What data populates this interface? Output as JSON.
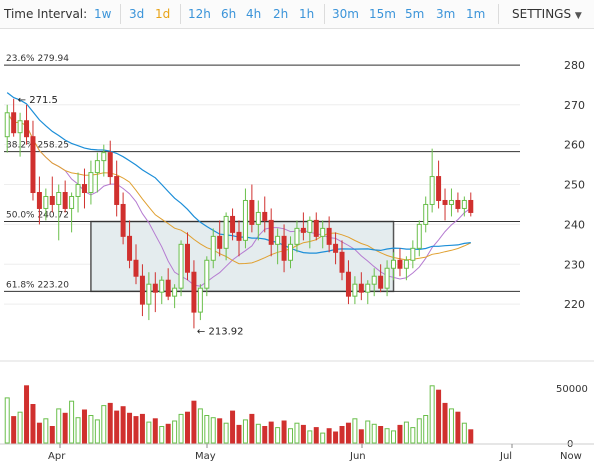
{
  "toolbar": {
    "label": "Time Interval:",
    "options": [
      "1w",
      "3d",
      "1d",
      "12h",
      "6h",
      "4h",
      "2h",
      "1h",
      "30m",
      "15m",
      "5m",
      "3m",
      "1m"
    ],
    "active": "1d",
    "settings_label": "SETTINGS",
    "accent_color": "#3b94d9",
    "active_color": "#e8a317"
  },
  "chart_data": {
    "type": "candlestick",
    "ylim": [
      210,
      285
    ],
    "y_ticks": [
      220,
      230,
      240,
      250,
      260,
      270,
      280
    ],
    "x_ticks": [
      "Apr",
      "May",
      "Jun",
      "Jul",
      "Now"
    ],
    "fib_levels": [
      {
        "label": "23.6% 279.94",
        "value": 279.94
      },
      {
        "label": "38.2% 258.25",
        "value": 258.25
      },
      {
        "label": "50.0% 240.72",
        "value": 240.72
      },
      {
        "label": "61.8% 223.20",
        "value": 223.2
      }
    ],
    "annotations": [
      {
        "label": "← 271.5",
        "value": 271.5
      },
      {
        "label": "← 213.92",
        "value": 213.92
      }
    ],
    "consolidation_range": [
      223.2,
      240.72
    ],
    "candles": [
      {
        "o": 262,
        "h": 270,
        "l": 258,
        "c": 268
      },
      {
        "o": 268,
        "h": 271.5,
        "l": 262,
        "c": 263
      },
      {
        "o": 263,
        "h": 268,
        "l": 257,
        "c": 266
      },
      {
        "o": 266,
        "h": 270,
        "l": 260,
        "c": 262
      },
      {
        "o": 262,
        "h": 266,
        "l": 246,
        "c": 248
      },
      {
        "o": 248,
        "h": 252,
        "l": 240,
        "c": 244
      },
      {
        "o": 244,
        "h": 249,
        "l": 241,
        "c": 247
      },
      {
        "o": 247,
        "h": 252,
        "l": 243,
        "c": 245
      },
      {
        "o": 245,
        "h": 250,
        "l": 236,
        "c": 248
      },
      {
        "o": 248,
        "h": 251,
        "l": 243,
        "c": 244
      },
      {
        "o": 244,
        "h": 248,
        "l": 238,
        "c": 247
      },
      {
        "o": 247,
        "h": 253,
        "l": 243,
        "c": 250
      },
      {
        "o": 250,
        "h": 254,
        "l": 244,
        "c": 248
      },
      {
        "o": 248,
        "h": 256,
        "l": 245,
        "c": 253
      },
      {
        "o": 253,
        "h": 258,
        "l": 248,
        "c": 256
      },
      {
        "o": 256,
        "h": 260,
        "l": 252,
        "c": 258
      },
      {
        "o": 258,
        "h": 261,
        "l": 250,
        "c": 252
      },
      {
        "o": 252,
        "h": 256,
        "l": 242,
        "c": 245
      },
      {
        "o": 245,
        "h": 248,
        "l": 235,
        "c": 237
      },
      {
        "o": 237,
        "h": 241,
        "l": 229,
        "c": 231
      },
      {
        "o": 231,
        "h": 235,
        "l": 225,
        "c": 227
      },
      {
        "o": 227,
        "h": 230,
        "l": 217,
        "c": 220
      },
      {
        "o": 220,
        "h": 228,
        "l": 216,
        "c": 225
      },
      {
        "o": 225,
        "h": 228,
        "l": 218,
        "c": 223
      },
      {
        "o": 223,
        "h": 227,
        "l": 220,
        "c": 226
      },
      {
        "o": 226,
        "h": 229,
        "l": 221,
        "c": 222
      },
      {
        "o": 222,
        "h": 225,
        "l": 219,
        "c": 224
      },
      {
        "o": 224,
        "h": 236,
        "l": 222,
        "c": 235
      },
      {
        "o": 235,
        "h": 238,
        "l": 226,
        "c": 228
      },
      {
        "o": 228,
        "h": 231,
        "l": 213.92,
        "c": 218
      },
      {
        "o": 218,
        "h": 225,
        "l": 216,
        "c": 224
      },
      {
        "o": 224,
        "h": 232,
        "l": 222,
        "c": 231
      },
      {
        "o": 231,
        "h": 239,
        "l": 229,
        "c": 237
      },
      {
        "o": 237,
        "h": 241,
        "l": 232,
        "c": 234
      },
      {
        "o": 234,
        "h": 243,
        "l": 231,
        "c": 242
      },
      {
        "o": 242,
        "h": 244,
        "l": 236,
        "c": 238
      },
      {
        "o": 238,
        "h": 241,
        "l": 232,
        "c": 236
      },
      {
        "o": 236,
        "h": 249,
        "l": 234,
        "c": 246
      },
      {
        "o": 246,
        "h": 250,
        "l": 238,
        "c": 240
      },
      {
        "o": 240,
        "h": 246,
        "l": 236,
        "c": 243
      },
      {
        "o": 243,
        "h": 247,
        "l": 238,
        "c": 241
      },
      {
        "o": 241,
        "h": 244,
        "l": 232,
        "c": 235
      },
      {
        "o": 235,
        "h": 239,
        "l": 230,
        "c": 237
      },
      {
        "o": 237,
        "h": 240,
        "l": 228,
        "c": 231
      },
      {
        "o": 231,
        "h": 237,
        "l": 229,
        "c": 235
      },
      {
        "o": 235,
        "h": 241,
        "l": 233,
        "c": 239
      },
      {
        "o": 239,
        "h": 243,
        "l": 236,
        "c": 238
      },
      {
        "o": 238,
        "h": 242,
        "l": 234,
        "c": 241
      },
      {
        "o": 241,
        "h": 243,
        "l": 236,
        "c": 237
      },
      {
        "o": 237,
        "h": 241,
        "l": 234,
        "c": 239
      },
      {
        "o": 239,
        "h": 242,
        "l": 233,
        "c": 235
      },
      {
        "o": 235,
        "h": 238,
        "l": 230,
        "c": 233
      },
      {
        "o": 233,
        "h": 236,
        "l": 226,
        "c": 228
      },
      {
        "o": 228,
        "h": 231,
        "l": 220,
        "c": 222
      },
      {
        "o": 222,
        "h": 227,
        "l": 220,
        "c": 225
      },
      {
        "o": 225,
        "h": 228,
        "l": 221,
        "c": 223
      },
      {
        "o": 223,
        "h": 226,
        "l": 220,
        "c": 225
      },
      {
        "o": 225,
        "h": 229,
        "l": 222,
        "c": 227
      },
      {
        "o": 227,
        "h": 230,
        "l": 223,
        "c": 224
      },
      {
        "o": 224,
        "h": 231,
        "l": 222,
        "c": 229
      },
      {
        "o": 229,
        "h": 233,
        "l": 226,
        "c": 231
      },
      {
        "o": 231,
        "h": 234,
        "l": 227,
        "c": 229
      },
      {
        "o": 229,
        "h": 232,
        "l": 226,
        "c": 231
      },
      {
        "o": 231,
        "h": 236,
        "l": 229,
        "c": 234
      },
      {
        "o": 234,
        "h": 241,
        "l": 232,
        "c": 240
      },
      {
        "o": 240,
        "h": 247,
        "l": 238,
        "c": 245
      },
      {
        "o": 245,
        "h": 259,
        "l": 243,
        "c": 252
      },
      {
        "o": 252,
        "h": 256,
        "l": 244,
        "c": 246
      },
      {
        "o": 246,
        "h": 249,
        "l": 241,
        "c": 245
      },
      {
        "o": 245,
        "h": 249,
        "l": 242,
        "c": 246
      },
      {
        "o": 246,
        "h": 248,
        "l": 243,
        "c": 244
      },
      {
        "o": 244,
        "h": 247,
        "l": 242,
        "c": 246
      },
      {
        "o": 246,
        "h": 248,
        "l": 242,
        "c": 243
      }
    ],
    "volume": [
      41000,
      24000,
      28000,
      52000,
      35000,
      18000,
      22000,
      15000,
      31000,
      27000,
      38000,
      23000,
      30000,
      25000,
      21000,
      34000,
      36000,
      29000,
      33000,
      27000,
      24000,
      26000,
      19000,
      22000,
      15000,
      17000,
      20000,
      26000,
      28000,
      38000,
      31000,
      25000,
      23000,
      22000,
      18000,
      29000,
      16000,
      21000,
      26000,
      17000,
      15000,
      19000,
      14000,
      20000,
      13000,
      18000,
      16000,
      11000,
      14000,
      9000,
      13000,
      10000,
      15000,
      18000,
      22000,
      12000,
      20000,
      17000,
      15000,
      13000,
      11000,
      16000,
      19000,
      14000,
      22000,
      25000,
      52000,
      48000,
      36000,
      31000,
      28000,
      18000,
      12000
    ],
    "volume_ylim": [
      0,
      70000
    ],
    "volume_ticks": [
      0,
      50000
    ],
    "up_color": "#6abf4b",
    "down_color": "#d0302e",
    "ma_fast_color": "#b57bd1",
    "ma_mid_color": "#e0a030",
    "ma_slow_color": "#1c8ed8",
    "range_fill": "#e4ecee"
  }
}
